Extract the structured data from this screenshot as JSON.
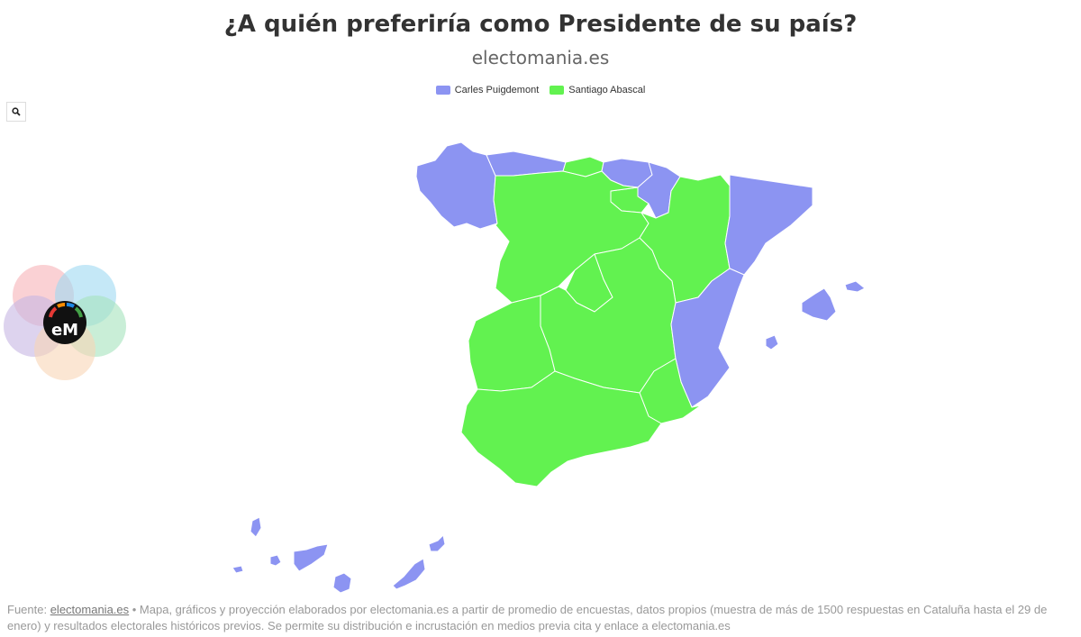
{
  "title": "¿A quién preferiría como Presidente de su país?",
  "subtitle": "electomania.es",
  "legend": [
    {
      "label": "Carles Puigdemont",
      "color": "#8c94f2"
    },
    {
      "label": "Santiago Abascal",
      "color": "#62f250"
    }
  ],
  "zoom_button": {
    "icon": "search-icon"
  },
  "logo": {
    "text": "eM"
  },
  "map_data": {
    "regions": [
      {
        "name": "Galicia",
        "winner": "Carles Puigdemont"
      },
      {
        "name": "Asturias",
        "winner": "Carles Puigdemont"
      },
      {
        "name": "Cantabria",
        "winner": "Santiago Abascal"
      },
      {
        "name": "País Vasco",
        "winner": "Carles Puigdemont"
      },
      {
        "name": "Navarra",
        "winner": "Carles Puigdemont"
      },
      {
        "name": "La Rioja",
        "winner": "Santiago Abascal"
      },
      {
        "name": "Aragón",
        "winner": "Santiago Abascal"
      },
      {
        "name": "Cataluña",
        "winner": "Carles Puigdemont"
      },
      {
        "name": "Castilla y León",
        "winner": "Santiago Abascal"
      },
      {
        "name": "Madrid",
        "winner": "Santiago Abascal"
      },
      {
        "name": "Castilla-La Mancha",
        "winner": "Santiago Abascal"
      },
      {
        "name": "Extremadura",
        "winner": "Santiago Abascal"
      },
      {
        "name": "Comunidad Valenciana",
        "winner": "Carles Puigdemont"
      },
      {
        "name": "Murcia",
        "winner": "Santiago Abascal"
      },
      {
        "name": "Andalucía",
        "winner": "Santiago Abascal"
      },
      {
        "name": "Islas Baleares",
        "winner": "Carles Puigdemont"
      },
      {
        "name": "Canarias",
        "winner": "Carles Puigdemont"
      }
    ]
  },
  "footer": {
    "prefix": "Fuente: ",
    "link": "electomania.es",
    "text": " • Mapa, gráficos y proyección elaborados por electomania.es a partir de promedio de encuestas, datos propios (muestra de más de 1500 respuestas en Cataluña hasta el 29 de enero) y resultados electorales históricos previos. Se permite su distribución e incrustación en medios previa cita y enlace a electomania.es"
  }
}
